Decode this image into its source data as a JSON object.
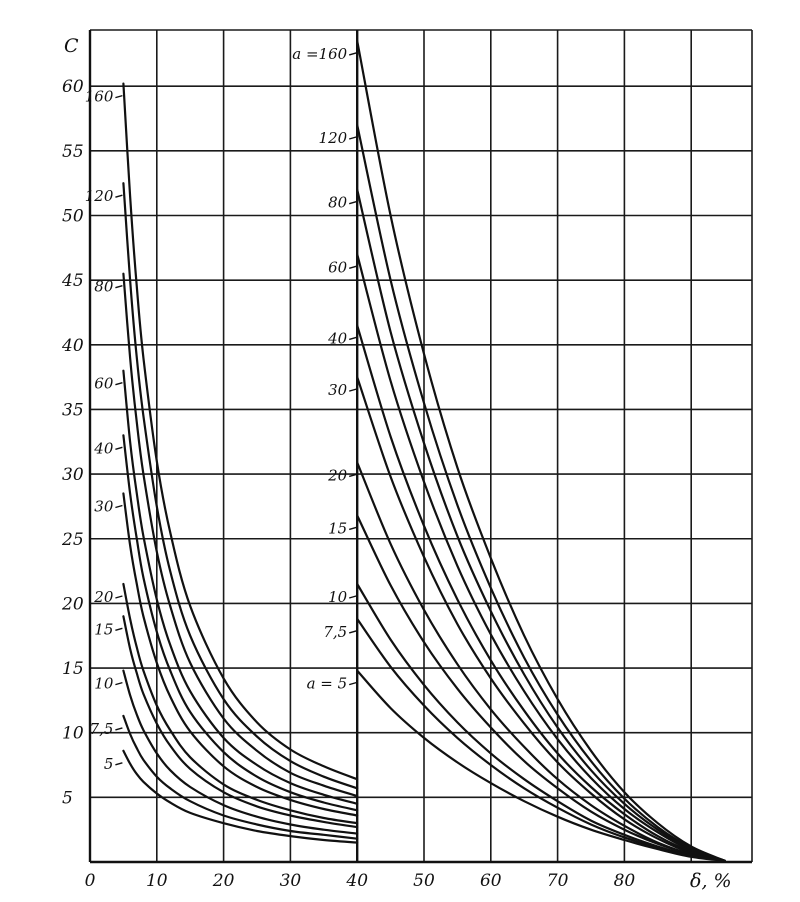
{
  "chart_data": {
    "type": "line",
    "ylabel": "C",
    "xlabel": "δ, %",
    "xlim": [
      0,
      97
    ],
    "ylim": [
      0,
      65
    ],
    "x_ticks": [
      "0",
      "10",
      "20",
      "30",
      "40",
      "50",
      "60",
      "70",
      "80"
    ],
    "y_ticks": [
      "5",
      "10",
      "15",
      "20",
      "25",
      "30",
      "35",
      "40",
      "45",
      "50",
      "55",
      "60"
    ],
    "grid": true,
    "panels": [
      {
        "name": "left",
        "series": [
          {
            "label": "160",
            "x": [
              5,
              6,
              7,
              8,
              10,
              12,
              15,
              20,
              25,
              30,
              35,
              40
            ],
            "y": [
              60.2,
              51.5,
              44.5,
              39,
              31,
              25.5,
              19.8,
              14.2,
              10.8,
              8.7,
              7.4,
              6.4
            ]
          },
          {
            "label": "120",
            "x": [
              5,
              6,
              7,
              8,
              10,
              12,
              15,
              20,
              25,
              30,
              35,
              40
            ],
            "y": [
              52.5,
              45,
              39,
              34.5,
              27.5,
              22.5,
              17.5,
              12.6,
              9.7,
              7.8,
              6.6,
              5.7
            ]
          },
          {
            "label": "80",
            "x": [
              5,
              6,
              7,
              8,
              10,
              12,
              15,
              20,
              25,
              30,
              35,
              40
            ],
            "y": [
              45.5,
              39,
              34,
              30,
              24,
              19.8,
              15.4,
              11.1,
              8.6,
              6.9,
              5.9,
              5.1
            ]
          },
          {
            "label": "60",
            "x": [
              5,
              6,
              7,
              8,
              10,
              12,
              15,
              20,
              25,
              30,
              35,
              40
            ],
            "y": [
              38,
              32.5,
              28.5,
              25.2,
              20.3,
              16.8,
              13.2,
              9.6,
              7.5,
              6.1,
              5.2,
              4.5
            ]
          },
          {
            "label": "40",
            "x": [
              5,
              6,
              7,
              8,
              10,
              12,
              15,
              20,
              25,
              30,
              35,
              40
            ],
            "y": [
              33,
              28.5,
              25,
              22,
              17.8,
              14.8,
              11.6,
              8.5,
              6.6,
              5.4,
              4.6,
              4
            ]
          },
          {
            "label": "30",
            "x": [
              5,
              6,
              7,
              8,
              10,
              12,
              15,
              20,
              25,
              30,
              35,
              40
            ],
            "y": [
              28.5,
              24.5,
              21.5,
              19,
              15.4,
              12.8,
              10.1,
              7.4,
              5.8,
              4.8,
              4.1,
              3.6
            ]
          },
          {
            "label": "20",
            "x": [
              5,
              6,
              7,
              8,
              10,
              12,
              15,
              20,
              25,
              30,
              35,
              40
            ],
            "y": [
              21.5,
              18.8,
              16.6,
              14.8,
              12.1,
              10.2,
              8.1,
              6,
              4.8,
              4,
              3.4,
              3
            ]
          },
          {
            "label": "15",
            "x": [
              5,
              6,
              7,
              8,
              10,
              12,
              15,
              20,
              25,
              30,
              35,
              40
            ],
            "y": [
              19,
              16.5,
              14.6,
              13,
              10.7,
              9,
              7.2,
              5.4,
              4.3,
              3.6,
              3.1,
              2.7
            ]
          },
          {
            "label": "10",
            "x": [
              5,
              6,
              7,
              8,
              10,
              12,
              15,
              20,
              25,
              30,
              35,
              40
            ],
            "y": [
              14.8,
              12.9,
              11.4,
              10.2,
              8.4,
              7.1,
              5.8,
              4.4,
              3.5,
              2.9,
              2.5,
              2.2
            ]
          },
          {
            "label": "7,5",
            "x": [
              5,
              6,
              7,
              8,
              10,
              12,
              15,
              20,
              25,
              30,
              35,
              40
            ],
            "y": [
              11.3,
              9.9,
              8.8,
              7.9,
              6.6,
              5.7,
              4.7,
              3.6,
              2.9,
              2.4,
              2.1,
              1.8
            ]
          },
          {
            "label": "5",
            "x": [
              5,
              6,
              7,
              8,
              10,
              12,
              15,
              20,
              25,
              30,
              35,
              40
            ],
            "y": [
              8.6,
              7.6,
              6.8,
              6.2,
              5.3,
              4.6,
              3.8,
              3,
              2.4,
              2,
              1.7,
              1.5
            ]
          }
        ]
      },
      {
        "name": "right",
        "series": [
          {
            "label": "a =160",
            "x": [
              40,
              45,
              50,
              55,
              60,
              65,
              70,
              75,
              80,
              85,
              90,
              95
            ],
            "y": [
              63.5,
              50,
              39.3,
              30.5,
              23.5,
              17.5,
              12.6,
              8.6,
              5.4,
              3,
              1.2,
              0.1
            ]
          },
          {
            "label": "120",
            "x": [
              40,
              45,
              50,
              55,
              60,
              65,
              70,
              75,
              80,
              85,
              90,
              95
            ],
            "y": [
              57,
              45,
              35.5,
              27.6,
              21.2,
              15.8,
              11.4,
              7.8,
              4.9,
              2.7,
              1.1,
              0.1
            ]
          },
          {
            "label": "80",
            "x": [
              40,
              45,
              50,
              55,
              60,
              65,
              70,
              75,
              80,
              85,
              90,
              95
            ],
            "y": [
              52,
              41,
              32.4,
              25.2,
              19.4,
              14.5,
              10.4,
              7.1,
              4.5,
              2.5,
              1,
              0.1
            ]
          },
          {
            "label": "60",
            "x": [
              40,
              45,
              50,
              55,
              60,
              65,
              70,
              75,
              80,
              85,
              90,
              95
            ],
            "y": [
              47,
              37.2,
              29.4,
              22.9,
              17.6,
              13.2,
              9.5,
              6.5,
              4.1,
              2.3,
              0.9,
              0.1
            ]
          },
          {
            "label": "40",
            "x": [
              40,
              45,
              50,
              55,
              60,
              65,
              70,
              75,
              80,
              85,
              90,
              95
            ],
            "y": [
              41.5,
              32.9,
              26,
              20.3,
              15.6,
              11.7,
              8.4,
              5.8,
              3.7,
              2,
              0.8,
              0.1
            ]
          },
          {
            "label": "30",
            "x": [
              40,
              45,
              50,
              55,
              60,
              65,
              70,
              75,
              80,
              85,
              90,
              95
            ],
            "y": [
              37.5,
              29.8,
              23.6,
              18.4,
              14.2,
              10.7,
              7.7,
              5.3,
              3.3,
              1.8,
              0.7,
              0.1
            ]
          },
          {
            "label": "20",
            "x": [
              40,
              45,
              50,
              55,
              60,
              65,
              70,
              75,
              80,
              85,
              90,
              95
            ],
            "y": [
              30.9,
              24.6,
              19.5,
              15.3,
              11.8,
              8.9,
              6.4,
              4.4,
              2.8,
              1.5,
              0.6,
              0.1
            ]
          },
          {
            "label": "15",
            "x": [
              40,
              45,
              50,
              55,
              60,
              65,
              70,
              75,
              80,
              85,
              90,
              95
            ],
            "y": [
              26.8,
              21.4,
              17,
              13.4,
              10.4,
              7.8,
              5.7,
              3.9,
              2.5,
              1.4,
              0.6,
              0.1
            ]
          },
          {
            "label": "10",
            "x": [
              40,
              45,
              50,
              55,
              60,
              65,
              70,
              75,
              80,
              85,
              90,
              95
            ],
            "y": [
              21.5,
              17.2,
              13.7,
              10.8,
              8.4,
              6.4,
              4.7,
              3.2,
              2.1,
              1.2,
              0.5,
              0.1
            ]
          },
          {
            "label": "7,5",
            "x": [
              40,
              45,
              50,
              55,
              60,
              65,
              70,
              75,
              80,
              85,
              90,
              95
            ],
            "y": [
              18.8,
              15.1,
              12.1,
              9.6,
              7.5,
              5.7,
              4.2,
              2.9,
              1.9,
              1.1,
              0.5,
              0.1
            ]
          },
          {
            "label": "a = 5",
            "x": [
              40,
              45,
              50,
              55,
              60,
              65,
              70,
              75,
              80,
              85,
              90,
              95
            ],
            "y": [
              14.8,
              11.9,
              9.6,
              7.7,
              6.1,
              4.7,
              3.5,
              2.5,
              1.7,
              1,
              0.4,
              0.1
            ]
          }
        ]
      }
    ]
  }
}
